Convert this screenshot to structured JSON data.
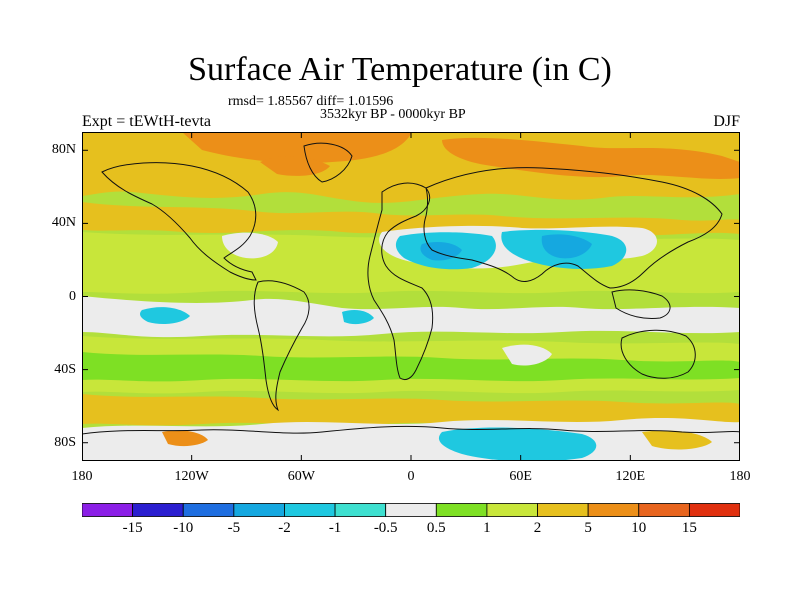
{
  "title": "Surface Air Temperature (in C)",
  "stats_line": "rmsd= 1.85567 diff= 1.01596",
  "period": "3532kyr BP - 0000kyr BP",
  "experiment": "Expt = tEWtH-tevta",
  "season": "DJF",
  "y_axis": {
    "ticks": [
      {
        "label": "80N",
        "lat": 80
      },
      {
        "label": "40N",
        "lat": 40
      },
      {
        "label": "0",
        "lat": 0
      },
      {
        "label": "40S",
        "lat": -40
      },
      {
        "label": "80S",
        "lat": -80
      }
    ]
  },
  "x_axis": {
    "ticks": [
      {
        "label": "180",
        "lon": -180
      },
      {
        "label": "120W",
        "lon": -120
      },
      {
        "label": "60W",
        "lon": -60
      },
      {
        "label": "0",
        "lon": 0
      },
      {
        "label": "60E",
        "lon": 60
      },
      {
        "label": "120E",
        "lon": 120
      },
      {
        "label": "180",
        "lon": 180
      }
    ]
  },
  "colorbar": {
    "colors": [
      "#8b1fe6",
      "#2b1fd0",
      "#1f6ee0",
      "#15a8e0",
      "#1fc8e0",
      "#3ee0d0",
      "#ececec",
      "#7ee024",
      "#c8e63a",
      "#e6c01e",
      "#ec8f18",
      "#e8651e",
      "#e0300f"
    ],
    "labels": [
      "-15",
      "-10",
      "-5",
      "-2",
      "-1",
      "-0.5",
      "0.5",
      "1",
      "2",
      "5",
      "10",
      "15"
    ]
  },
  "map_colors": {
    "ocean_base": "#b2df3b",
    "warm": "#e6c01e",
    "warmer": "#ec8f18",
    "neutral": "#ececec",
    "cool": "#1fc8e0",
    "cooler": "#15a8e0",
    "green": "#7ee024",
    "coast": "#111111"
  }
}
